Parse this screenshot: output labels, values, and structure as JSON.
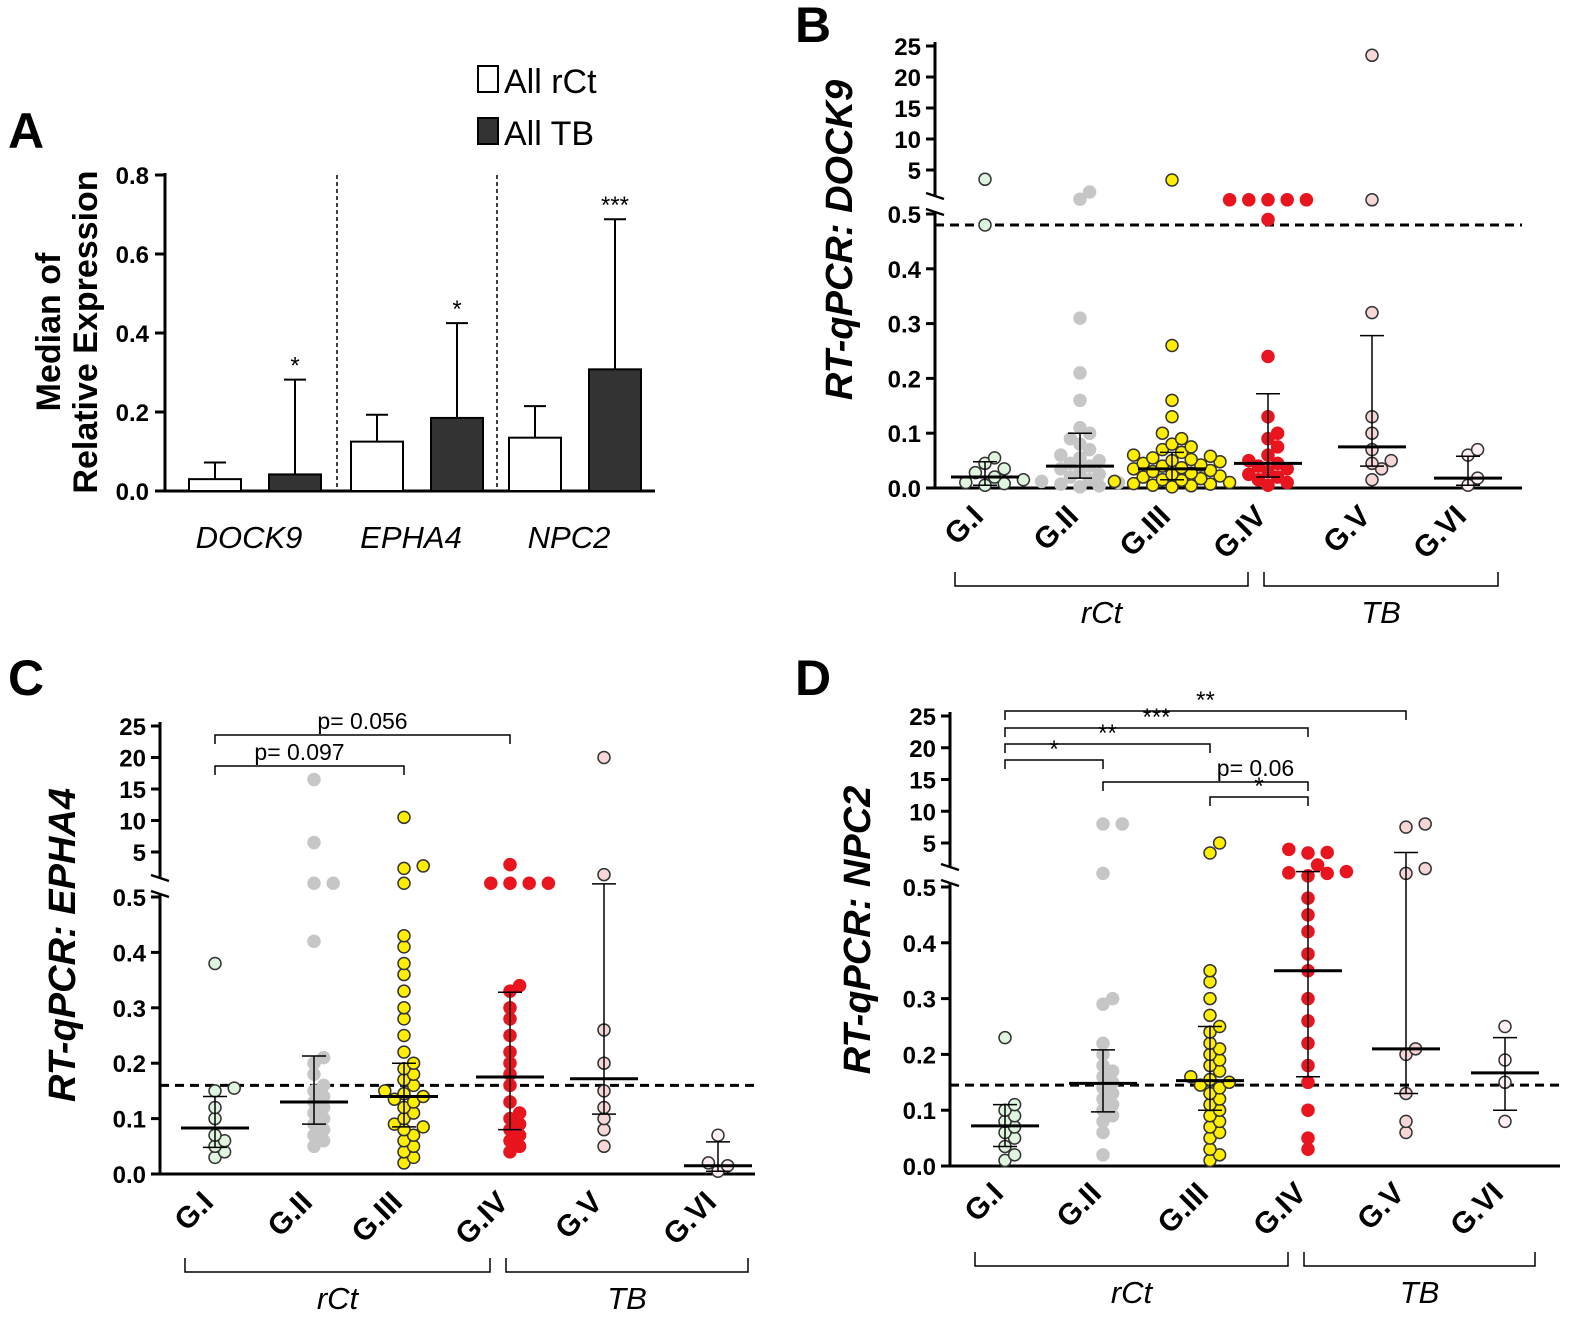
{
  "figure": {
    "panel_labels": [
      "A",
      "B",
      "C",
      "D"
    ],
    "group_labels": [
      "G.I",
      "G.II",
      "G.III",
      "G.IV",
      "G.V",
      "G.VI"
    ],
    "bracket_labels": [
      "rCt",
      "TB"
    ]
  },
  "chart_data": [
    {
      "panel": "A",
      "type": "bar",
      "ylabel_lines": [
        "Median of",
        "Relative Expression"
      ],
      "ylim": [
        0,
        0.8
      ],
      "yticks": [
        "0.0",
        "0.2",
        "0.4",
        "0.6",
        "0.8"
      ],
      "categories": [
        "DOCK9",
        "EPHA4",
        "NPC2"
      ],
      "series": [
        {
          "name": "All rCt",
          "color": "#ffffff",
          "values": [
            0.03,
            0.125,
            0.135
          ],
          "err_upper": [
            0.072,
            0.193,
            0.215
          ]
        },
        {
          "name": "All TB",
          "color": "#333333",
          "values": [
            0.042,
            0.185,
            0.308
          ],
          "err_upper": [
            0.282,
            0.425,
            0.688
          ]
        }
      ],
      "significance": [
        "*",
        "*",
        "***"
      ],
      "legend": [
        "All rCt",
        "All TB"
      ]
    },
    {
      "panel": "B",
      "type": "scatter",
      "ylabel": "RT-qPCR: DOCK9",
      "yticks_low": [
        "0.0",
        "0.1",
        "0.2",
        "0.3",
        "0.4",
        "0.5"
      ],
      "yticks_high": [
        "5",
        "10",
        "15",
        "20",
        "25"
      ],
      "threshold": 0.48,
      "groups": [
        {
          "name": "G.I",
          "color": "#dff5df",
          "median": 0.02,
          "q1": 0.005,
          "q3": 0.048,
          "values": [
            0.005,
            0.008,
            0.01,
            0.015,
            0.02,
            0.028,
            0.035,
            0.045,
            0.055,
            0.48,
            3.5
          ]
        },
        {
          "name": "G.II",
          "color": "#c6c6c6",
          "median": 0.04,
          "q1": 0.018,
          "q3": 0.1,
          "values": [
            0.002,
            0.004,
            0.007,
            0.01,
            0.012,
            0.015,
            0.02,
            0.025,
            0.03,
            0.035,
            0.04,
            0.045,
            0.05,
            0.055,
            0.06,
            0.07,
            0.08,
            0.09,
            0.1,
            0.11,
            0.16,
            0.21,
            0.31,
            1.5,
            0.9
          ]
        },
        {
          "name": "G.III",
          "color": "#ffee00",
          "median": 0.035,
          "q1": 0.015,
          "q3": 0.065,
          "values": [
            0.002,
            0.004,
            0.005,
            0.007,
            0.008,
            0.01,
            0.012,
            0.014,
            0.015,
            0.017,
            0.02,
            0.022,
            0.025,
            0.027,
            0.03,
            0.032,
            0.035,
            0.037,
            0.04,
            0.042,
            0.045,
            0.048,
            0.05,
            0.052,
            0.055,
            0.058,
            0.06,
            0.065,
            0.07,
            0.075,
            0.08,
            0.09,
            0.1,
            0.13,
            0.16,
            0.26,
            2.5
          ]
        },
        {
          "name": "G.IV",
          "color": "#e8141e",
          "median": 0.045,
          "q1": 0.02,
          "q3": 0.172,
          "values": [
            0.005,
            0.01,
            0.015,
            0.02,
            0.025,
            0.03,
            0.035,
            0.04,
            0.045,
            0.05,
            0.06,
            0.075,
            0.09,
            0.1,
            0.13,
            0.24,
            0.49,
            0.85,
            0.85,
            0.85,
            0.85,
            0.85
          ]
        },
        {
          "name": "G.V",
          "color": "#f6d6d6",
          "median": 0.075,
          "q1": 0.04,
          "q3": 0.278,
          "values": [
            0.015,
            0.035,
            0.045,
            0.05,
            0.07,
            0.1,
            0.13,
            0.32,
            0.85,
            23.5
          ]
        },
        {
          "name": "G.VI",
          "color": "#fff0f3",
          "median": 0.018,
          "q1": 0.005,
          "q3": 0.058,
          "values": [
            0.005,
            0.018,
            0.06,
            0.07
          ]
        }
      ]
    },
    {
      "panel": "C",
      "type": "scatter",
      "ylabel": "RT-qPCR: EPHA4",
      "yticks_low": [
        "0.0",
        "0.1",
        "0.2",
        "0.3",
        "0.4",
        "0.5"
      ],
      "yticks_high": [
        "5",
        "10",
        "15",
        "20",
        "25"
      ],
      "threshold": 0.16,
      "comparisons": [
        {
          "from": 0,
          "to": 2,
          "label": "p= 0.097"
        },
        {
          "from": 0,
          "to": 3,
          "label": "p= 0.056"
        }
      ],
      "groups": [
        {
          "name": "G.I",
          "color": "#dff5df",
          "median": 0.083,
          "q1": 0.048,
          "q3": 0.14,
          "values": [
            0.03,
            0.04,
            0.05,
            0.06,
            0.07,
            0.1,
            0.12,
            0.15,
            0.155,
            0.38
          ]
        },
        {
          "name": "G.II",
          "color": "#c6c6c6",
          "median": 0.13,
          "q1": 0.09,
          "q3": 0.213,
          "values": [
            0.05,
            0.06,
            0.07,
            0.08,
            0.09,
            0.1,
            0.11,
            0.12,
            0.13,
            0.14,
            0.15,
            0.16,
            0.18,
            0.2,
            0.21,
            0.42,
            0.8,
            0.8,
            6.5,
            16.5
          ]
        },
        {
          "name": "G.III",
          "color": "#ffee00",
          "median": 0.14,
          "q1": 0.085,
          "q3": 0.2,
          "values": [
            0.02,
            0.03,
            0.04,
            0.05,
            0.06,
            0.07,
            0.08,
            0.085,
            0.09,
            0.1,
            0.11,
            0.12,
            0.13,
            0.135,
            0.14,
            0.145,
            0.15,
            0.16,
            0.17,
            0.18,
            0.19,
            0.2,
            0.22,
            0.25,
            0.28,
            0.3,
            0.33,
            0.36,
            0.38,
            0.41,
            0.43,
            0.8,
            2.0,
            2.2,
            10.5
          ]
        },
        {
          "name": "G.IV",
          "color": "#e8141e",
          "median": 0.175,
          "q1": 0.08,
          "q3": 0.328,
          "values": [
            0.04,
            0.05,
            0.06,
            0.07,
            0.08,
            0.09,
            0.1,
            0.11,
            0.13,
            0.16,
            0.18,
            0.2,
            0.22,
            0.25,
            0.28,
            0.3,
            0.33,
            0.34,
            0.8,
            0.8,
            0.8,
            0.8,
            3.0
          ]
        },
        {
          "name": "G.V",
          "color": "#f6d6d6",
          "median": 0.172,
          "q1": 0.108,
          "q3": 0.75,
          "values": [
            0.05,
            0.08,
            0.1,
            0.12,
            0.15,
            0.2,
            0.26,
            1.5,
            20.0
          ]
        },
        {
          "name": "G.VI",
          "color": "#fff0f3",
          "median": 0.015,
          "q1": 0.005,
          "q3": 0.058,
          "values": [
            0.005,
            0.015,
            0.02,
            0.07
          ]
        }
      ]
    },
    {
      "panel": "D",
      "type": "scatter",
      "ylabel": "RT-qPCR: NPC2",
      "yticks_low": [
        "0.0",
        "0.1",
        "0.2",
        "0.3",
        "0.4",
        "0.5"
      ],
      "yticks_high": [
        "5",
        "10",
        "15",
        "20",
        "25"
      ],
      "threshold": 0.145,
      "comparisons": [
        {
          "from": 0,
          "to": 1,
          "label": "*"
        },
        {
          "from": 0,
          "to": 2,
          "label": "**"
        },
        {
          "from": 0,
          "to": 3,
          "label": "***"
        },
        {
          "from": 0,
          "to": 4,
          "label": "**"
        },
        {
          "from": 1,
          "to": 3,
          "label": "p= 0.06"
        },
        {
          "from": 2,
          "to": 3,
          "label": "*"
        }
      ],
      "groups": [
        {
          "name": "G.I",
          "color": "#dff5df",
          "median": 0.072,
          "q1": 0.035,
          "q3": 0.11,
          "values": [
            0.01,
            0.02,
            0.035,
            0.05,
            0.06,
            0.07,
            0.08,
            0.09,
            0.1,
            0.11,
            0.23
          ]
        },
        {
          "name": "G.II",
          "color": "#c6c6c6",
          "median": 0.148,
          "q1": 0.097,
          "q3": 0.208,
          "values": [
            0.02,
            0.06,
            0.08,
            0.09,
            0.1,
            0.11,
            0.12,
            0.13,
            0.14,
            0.15,
            0.16,
            0.17,
            0.18,
            0.2,
            0.22,
            0.29,
            0.3,
            0.8,
            8.0,
            8.0
          ]
        },
        {
          "name": "G.III",
          "color": "#ffee00",
          "median": 0.153,
          "q1": 0.1,
          "q3": 0.25,
          "values": [
            0.01,
            0.02,
            0.03,
            0.05,
            0.06,
            0.07,
            0.08,
            0.09,
            0.1,
            0.11,
            0.12,
            0.13,
            0.14,
            0.145,
            0.15,
            0.155,
            0.16,
            0.17,
            0.18,
            0.19,
            0.2,
            0.21,
            0.22,
            0.24,
            0.25,
            0.27,
            0.3,
            0.33,
            0.35,
            2.5,
            5.0
          ]
        },
        {
          "name": "G.IV",
          "color": "#e8141e",
          "median": 0.35,
          "q1": 0.16,
          "q3": 0.95,
          "values": [
            0.03,
            0.05,
            0.1,
            0.15,
            0.18,
            0.22,
            0.26,
            0.3,
            0.35,
            0.38,
            0.42,
            0.45,
            0.48,
            0.6,
            0.8,
            0.85,
            0.95,
            1.5,
            2.5,
            3.5,
            4.0
          ]
        },
        {
          "name": "G.V",
          "color": "#f6d6d6",
          "median": 0.21,
          "q1": 0.13,
          "q3": 3.5,
          "values": [
            0.06,
            0.08,
            0.13,
            0.2,
            0.21,
            0.8,
            1.2,
            7.5,
            8.0
          ]
        },
        {
          "name": "G.VI",
          "color": "#fff0f3",
          "median": 0.167,
          "q1": 0.1,
          "q3": 0.23,
          "values": [
            0.08,
            0.15,
            0.19,
            0.25
          ]
        }
      ]
    }
  ]
}
